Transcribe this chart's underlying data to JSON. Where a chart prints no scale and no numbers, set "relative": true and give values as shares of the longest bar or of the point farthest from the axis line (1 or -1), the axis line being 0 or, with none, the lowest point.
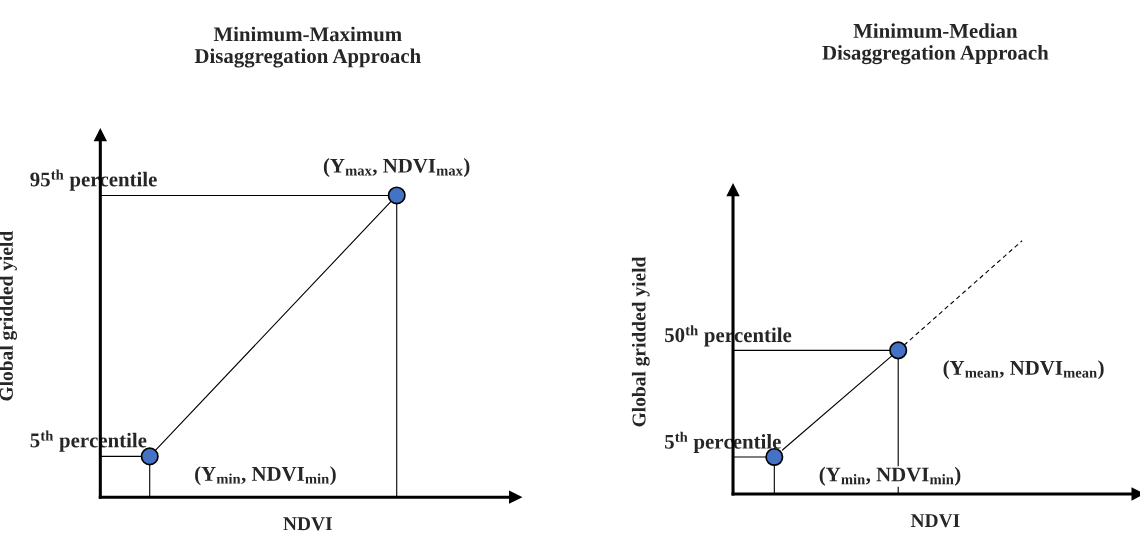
{
  "chart_data": [
    {
      "type": "line",
      "relative": true,
      "title": "Minimum-Maximum\nDisaggregation Approach",
      "xlabel": "NDVI",
      "ylabel": "Global gridded yield",
      "tick_labels": false,
      "categories": [
        null,
        null,
        null,
        null,
        null,
        null,
        null
      ],
      "series": [
        {
          "values": [
            null,
            0.135,
            null,
            null,
            null,
            null,
            1.0
          ],
          "color": "#000000",
          "colors": [
            null,
            "#4472c4",
            null,
            null,
            null,
            null,
            "#4472c4"
          ],
          "marker": "circle",
          "line_style": "solid"
        }
      ],
      "ref_lines": [
        {
          "axis": "y",
          "value": 1.0,
          "label": "95$^{th}$ percentile"
        },
        {
          "axis": "y",
          "value": 0.135,
          "label": "5$^{th}$ percentile"
        }
      ],
      "annotations": [
        "(Y$_{max}$, NDVI$_{max}$)",
        "(Y$_{min}$, NDVI$_{min}$)"
      ]
    },
    {
      "type": "line",
      "relative": true,
      "title": "Minimum-Median\nDisaggregation Approach",
      "xlabel": "NDVI",
      "ylabel": "Global gridded yield",
      "tick_labels": false,
      "categories": [
        null,
        null,
        null,
        null,
        null,
        null,
        null,
        null
      ],
      "series": [
        {
          "values": [
            null,
            0.146,
            null,
            null,
            0.567,
            null,
            null,
            null
          ],
          "color": "#000000",
          "colors": [
            null,
            "#4472c4",
            null,
            null,
            "#4472c4",
            null,
            null,
            null
          ],
          "marker": "circle",
          "line_style": "solid"
        },
        {
          "values": [
            null,
            null,
            null,
            null,
            0.567,
            null,
            null,
            1.0
          ],
          "color": "#000000",
          "marker": "none",
          "line_style": "dashed"
        }
      ],
      "ref_lines": [
        {
          "axis": "y",
          "value": 0.567,
          "label": "50$^{th}$ percentile"
        },
        {
          "axis": "y",
          "value": 0.146,
          "label": "5$^{th}$ percentile"
        }
      ],
      "annotations": [
        "(Y$_{mean}$, NDVI$_{mean}$)",
        "(Y$_{min}$, NDVI$_{min}$)"
      ]
    }
  ]
}
